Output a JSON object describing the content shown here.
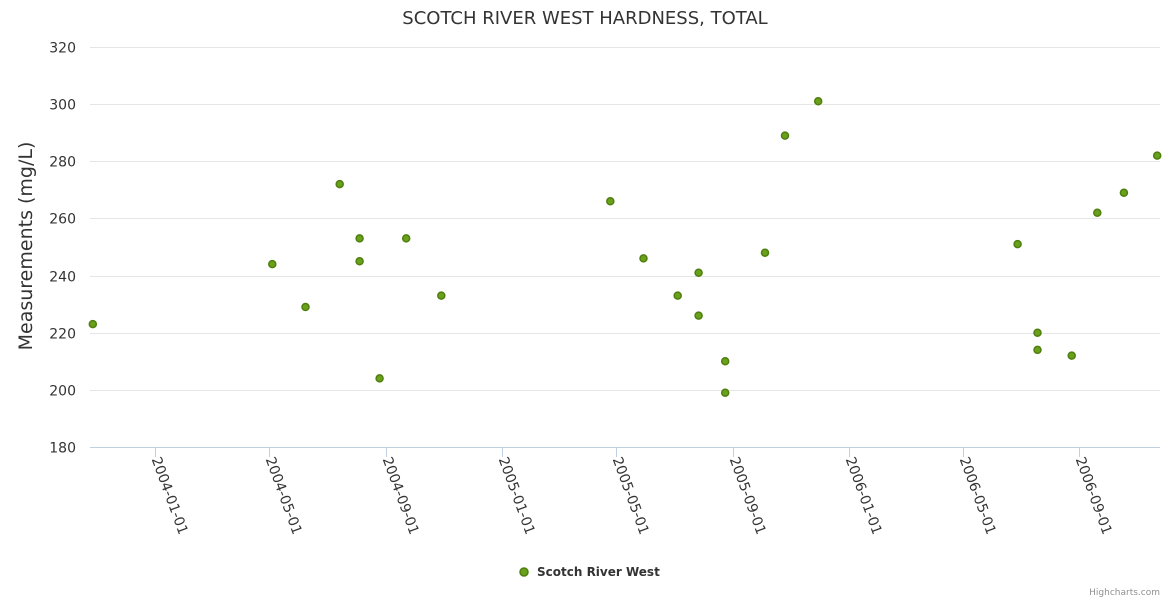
{
  "chart_data": {
    "type": "scatter",
    "title": "SCOTCH RIVER WEST HARDNESS, TOTAL",
    "xlabel": "",
    "ylabel": "Measurements (mg/L)",
    "ylim": [
      180,
      320
    ],
    "yticks": [
      "180",
      "200",
      "220",
      "240",
      "260",
      "280",
      "300",
      "320"
    ],
    "xlim": [
      "2003-10-25",
      "2006-11-25"
    ],
    "xticks": [
      {
        "date": "2004-01-01",
        "label": "2004-01-01"
      },
      {
        "date": "2004-05-01",
        "label": "2004-05-01"
      },
      {
        "date": "2004-09-01",
        "label": "2004-09-01"
      },
      {
        "date": "2005-01-01",
        "label": "2005-01-01"
      },
      {
        "date": "2005-05-01",
        "label": "2005-05-01"
      },
      {
        "date": "2005-09-01",
        "label": "2005-09-01"
      },
      {
        "date": "2006-01-01",
        "label": "2006-01-01"
      },
      {
        "date": "2006-05-01",
        "label": "2006-05-01"
      },
      {
        "date": "2006-09-01",
        "label": "2006-09-01"
      }
    ],
    "grid": true,
    "legend_position": "bottom-center",
    "series": [
      {
        "name": "Scotch River West",
        "color": "#6aa11b",
        "stroke": "#4f7f0f",
        "points": [
          {
            "x": "2003-10-28",
            "y": 223
          },
          {
            "x": "2004-05-04",
            "y": 244
          },
          {
            "x": "2004-06-08",
            "y": 229
          },
          {
            "x": "2004-07-14",
            "y": 272
          },
          {
            "x": "2004-08-04",
            "y": 253
          },
          {
            "x": "2004-08-04",
            "y": 245
          },
          {
            "x": "2004-08-25",
            "y": 204
          },
          {
            "x": "2004-09-22",
            "y": 253
          },
          {
            "x": "2004-10-29",
            "y": 233
          },
          {
            "x": "2005-04-25",
            "y": 266
          },
          {
            "x": "2005-05-30",
            "y": 246
          },
          {
            "x": "2005-07-05",
            "y": 233
          },
          {
            "x": "2005-07-27",
            "y": 241
          },
          {
            "x": "2005-07-27",
            "y": 226
          },
          {
            "x": "2005-08-24",
            "y": 210
          },
          {
            "x": "2005-08-24",
            "y": 199
          },
          {
            "x": "2005-10-05",
            "y": 248
          },
          {
            "x": "2005-10-26",
            "y": 289
          },
          {
            "x": "2005-11-30",
            "y": 301
          },
          {
            "x": "2006-06-28",
            "y": 251
          },
          {
            "x": "2006-07-19",
            "y": 220
          },
          {
            "x": "2006-07-19",
            "y": 214
          },
          {
            "x": "2006-08-24",
            "y": 212
          },
          {
            "x": "2006-09-20",
            "y": 262
          },
          {
            "x": "2006-10-18",
            "y": 269
          },
          {
            "x": "2006-11-22",
            "y": 282
          }
        ]
      }
    ]
  },
  "credits": "Highcharts.com"
}
